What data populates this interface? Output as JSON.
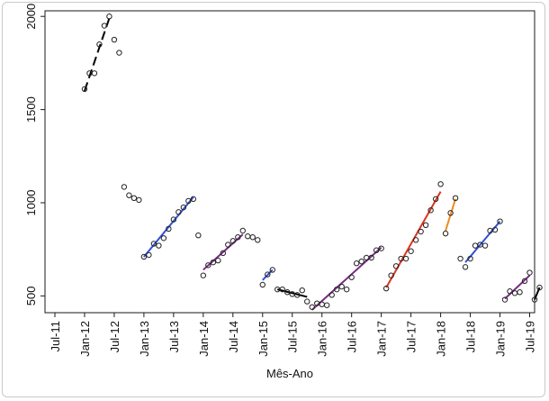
{
  "chart_data": {
    "type": "scatter",
    "title": "",
    "xlabel": "Mês-Ano",
    "ylabel": "",
    "xlim": [
      "2011-05",
      "2019-08"
    ],
    "ylim": [
      410,
      2030
    ],
    "grid": false,
    "x_ticks": [
      {
        "label": "Jul-11",
        "x": "2011-07"
      },
      {
        "label": "Jan-12",
        "x": "2012-01"
      },
      {
        "label": "Jul-12",
        "x": "2012-07"
      },
      {
        "label": "Jan-13",
        "x": "2013-01"
      },
      {
        "label": "Jul-13",
        "x": "2013-07"
      },
      {
        "label": "Jan-14",
        "x": "2014-01"
      },
      {
        "label": "Jul-14",
        "x": "2014-07"
      },
      {
        "label": "Jan-15",
        "x": "2015-01"
      },
      {
        "label": "Jul-15",
        "x": "2015-07"
      },
      {
        "label": "Jan-16",
        "x": "2016-01"
      },
      {
        "label": "Jul-16",
        "x": "2016-07"
      },
      {
        "label": "Jan-17",
        "x": "2017-01"
      },
      {
        "label": "Jul-17",
        "x": "2017-07"
      },
      {
        "label": "Jan-18",
        "x": "2018-01"
      },
      {
        "label": "Jul-18",
        "x": "2018-07"
      },
      {
        "label": "Jan-19",
        "x": "2019-01"
      },
      {
        "label": "Jul-19",
        "x": "2019-07"
      }
    ],
    "y_ticks": [
      500,
      1000,
      1500,
      2000
    ],
    "points": [
      {
        "x": "2012-01",
        "y": 1610
      },
      {
        "x": "2012-02",
        "y": 1695
      },
      {
        "x": "2012-03",
        "y": 1695
      },
      {
        "x": "2012-04",
        "y": 1850
      },
      {
        "x": "2012-05",
        "y": 1950
      },
      {
        "x": "2012-06",
        "y": 2000
      },
      {
        "x": "2012-07",
        "y": 1875
      },
      {
        "x": "2012-08",
        "y": 1805
      },
      {
        "x": "2012-09",
        "y": 1085
      },
      {
        "x": "2012-10",
        "y": 1040
      },
      {
        "x": "2012-11",
        "y": 1025
      },
      {
        "x": "2012-12",
        "y": 1015
      },
      {
        "x": "2013-01",
        "y": 710
      },
      {
        "x": "2013-02",
        "y": 720
      },
      {
        "x": "2013-03",
        "y": 780
      },
      {
        "x": "2013-04",
        "y": 770
      },
      {
        "x": "2013-05",
        "y": 810
      },
      {
        "x": "2013-06",
        "y": 860
      },
      {
        "x": "2013-07",
        "y": 910
      },
      {
        "x": "2013-08",
        "y": 950
      },
      {
        "x": "2013-09",
        "y": 975
      },
      {
        "x": "2013-10",
        "y": 1010
      },
      {
        "x": "2013-11",
        "y": 1020
      },
      {
        "x": "2013-12",
        "y": 825
      },
      {
        "x": "2014-01",
        "y": 610
      },
      {
        "x": "2014-02",
        "y": 665
      },
      {
        "x": "2014-03",
        "y": 680
      },
      {
        "x": "2014-04",
        "y": 690
      },
      {
        "x": "2014-05",
        "y": 730
      },
      {
        "x": "2014-06",
        "y": 775
      },
      {
        "x": "2014-07",
        "y": 795
      },
      {
        "x": "2014-08",
        "y": 815
      },
      {
        "x": "2014-09",
        "y": 850
      },
      {
        "x": "2014-10",
        "y": 820
      },
      {
        "x": "2014-11",
        "y": 815
      },
      {
        "x": "2014-12",
        "y": 800
      },
      {
        "x": "2015-01",
        "y": 560
      },
      {
        "x": "2015-02",
        "y": 615
      },
      {
        "x": "2015-03",
        "y": 640
      },
      {
        "x": "2015-04",
        "y": 535
      },
      {
        "x": "2015-05",
        "y": 535
      },
      {
        "x": "2015-06",
        "y": 520
      },
      {
        "x": "2015-07",
        "y": 510
      },
      {
        "x": "2015-08",
        "y": 505
      },
      {
        "x": "2015-09",
        "y": 530
      },
      {
        "x": "2015-10",
        "y": 470
      },
      {
        "x": "2015-11",
        "y": 440
      },
      {
        "x": "2015-12",
        "y": 460
      },
      {
        "x": "2016-01",
        "y": 455
      },
      {
        "x": "2016-02",
        "y": 450
      },
      {
        "x": "2016-03",
        "y": 505
      },
      {
        "x": "2016-04",
        "y": 535
      },
      {
        "x": "2016-05",
        "y": 550
      },
      {
        "x": "2016-06",
        "y": 535
      },
      {
        "x": "2016-07",
        "y": 600
      },
      {
        "x": "2016-08",
        "y": 675
      },
      {
        "x": "2016-09",
        "y": 685
      },
      {
        "x": "2016-10",
        "y": 705
      },
      {
        "x": "2016-11",
        "y": 705
      },
      {
        "x": "2016-12",
        "y": 745
      },
      {
        "x": "2017-01",
        "y": 755
      },
      {
        "x": "2017-02",
        "y": 540
      },
      {
        "x": "2017-03",
        "y": 610
      },
      {
        "x": "2017-04",
        "y": 660
      },
      {
        "x": "2017-05",
        "y": 700
      },
      {
        "x": "2017-06",
        "y": 700
      },
      {
        "x": "2017-07",
        "y": 740
      },
      {
        "x": "2017-08",
        "y": 800
      },
      {
        "x": "2017-09",
        "y": 845
      },
      {
        "x": "2017-10",
        "y": 880
      },
      {
        "x": "2017-11",
        "y": 960
      },
      {
        "x": "2017-12",
        "y": 1020
      },
      {
        "x": "2018-01",
        "y": 1100
      },
      {
        "x": "2018-02",
        "y": 835
      },
      {
        "x": "2018-03",
        "y": 945
      },
      {
        "x": "2018-04",
        "y": 1025
      },
      {
        "x": "2018-05",
        "y": 700
      },
      {
        "x": "2018-06",
        "y": 655
      },
      {
        "x": "2018-07",
        "y": 700
      },
      {
        "x": "2018-08",
        "y": 770
      },
      {
        "x": "2018-09",
        "y": 775
      },
      {
        "x": "2018-10",
        "y": 770
      },
      {
        "x": "2018-11",
        "y": 850
      },
      {
        "x": "2018-12",
        "y": 855
      },
      {
        "x": "2019-01",
        "y": 900
      },
      {
        "x": "2019-02",
        "y": 480
      },
      {
        "x": "2019-03",
        "y": 525
      },
      {
        "x": "2019-04",
        "y": 515
      },
      {
        "x": "2019-05",
        "y": 520
      },
      {
        "x": "2019-06",
        "y": 580
      },
      {
        "x": "2019-07",
        "y": 625
      },
      {
        "x": "2019-08",
        "y": 480
      },
      {
        "x": "2019-09",
        "y": 545
      }
    ],
    "segments": [
      {
        "color": "#000000",
        "dash": true,
        "x0": "2012-01",
        "y0": 1600,
        "x1": "2012-06",
        "y1": 1990
      },
      {
        "color": "#2f4fd6",
        "dash": false,
        "x0": "2013-01",
        "y0": 710,
        "x1": "2013-11",
        "y1": 1030
      },
      {
        "color": "#7b2a85",
        "dash": false,
        "x0": "2014-01",
        "y0": 640,
        "x1": "2014-09",
        "y1": 830
      },
      {
        "color": "#2f4fd6",
        "dash": false,
        "x0": "2015-01",
        "y0": 585,
        "x1": "2015-03",
        "y1": 640
      },
      {
        "color": "#000000",
        "dash": false,
        "x0": "2015-04",
        "y0": 535,
        "x1": "2015-10",
        "y1": 495
      },
      {
        "color": "#7b2a85",
        "dash": false,
        "x0": "2015-11",
        "y0": 425,
        "x1": "2017-01",
        "y1": 760
      },
      {
        "color": "#e0321e",
        "dash": false,
        "x0": "2017-02",
        "y0": 545,
        "x1": "2018-01",
        "y1": 1060
      },
      {
        "color": "#f08a1c",
        "dash": false,
        "x0": "2018-02",
        "y0": 850,
        "x1": "2018-04",
        "y1": 1020
      },
      {
        "color": "#2f4fd6",
        "dash": false,
        "x0": "2018-06",
        "y0": 680,
        "x1": "2019-01",
        "y1": 900
      },
      {
        "color": "#7b2a85",
        "dash": false,
        "x0": "2019-02",
        "y0": 485,
        "x1": "2019-07",
        "y1": 610
      },
      {
        "color": "#000000",
        "dash": false,
        "x0": "2019-08",
        "y0": 480,
        "x1": "2019-09",
        "y1": 545
      }
    ]
  }
}
